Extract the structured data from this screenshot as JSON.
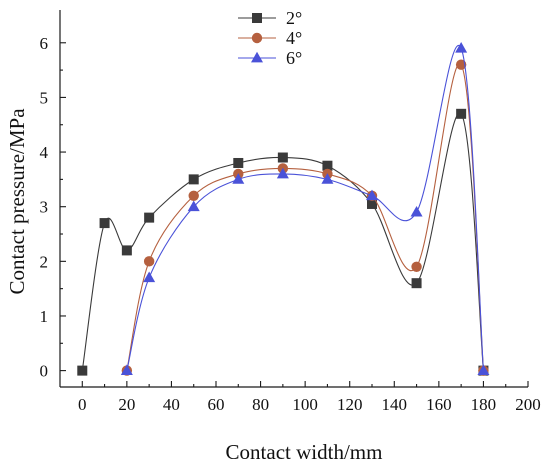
{
  "chart_data": {
    "type": "line",
    "xlabel": "Contact width/mm",
    "ylabel": "Contact pressure/MPa",
    "xlim": [
      -10,
      200
    ],
    "ylim": [
      -0.3,
      6.6
    ],
    "xticks": [
      0,
      20,
      40,
      60,
      80,
      100,
      120,
      140,
      160,
      180,
      200
    ],
    "yticks": [
      0,
      1,
      2,
      3,
      4,
      5,
      6
    ],
    "grid": false,
    "legend_position": "top-center",
    "series": [
      {
        "name": "2°",
        "color": "#3a3a3a",
        "marker": "square",
        "x": [
          0,
          10,
          20,
          30,
          50,
          70,
          90,
          110,
          130,
          150,
          170,
          180
        ],
        "y": [
          0,
          2.7,
          2.2,
          2.8,
          3.5,
          3.8,
          3.9,
          3.75,
          3.05,
          1.6,
          4.7,
          0
        ]
      },
      {
        "name": "4°",
        "color": "#b5603f",
        "marker": "circle",
        "x": [
          20,
          30,
          50,
          70,
          90,
          110,
          130,
          150,
          170,
          180
        ],
        "y": [
          0,
          2.0,
          3.2,
          3.6,
          3.7,
          3.6,
          3.2,
          1.9,
          5.6,
          0
        ]
      },
      {
        "name": "6°",
        "color": "#4a52d8",
        "marker": "triangle",
        "x": [
          20,
          30,
          50,
          70,
          90,
          110,
          130,
          150,
          170,
          180
        ],
        "y": [
          0,
          1.7,
          3.0,
          3.5,
          3.6,
          3.5,
          3.2,
          2.9,
          5.9,
          0
        ]
      }
    ]
  }
}
